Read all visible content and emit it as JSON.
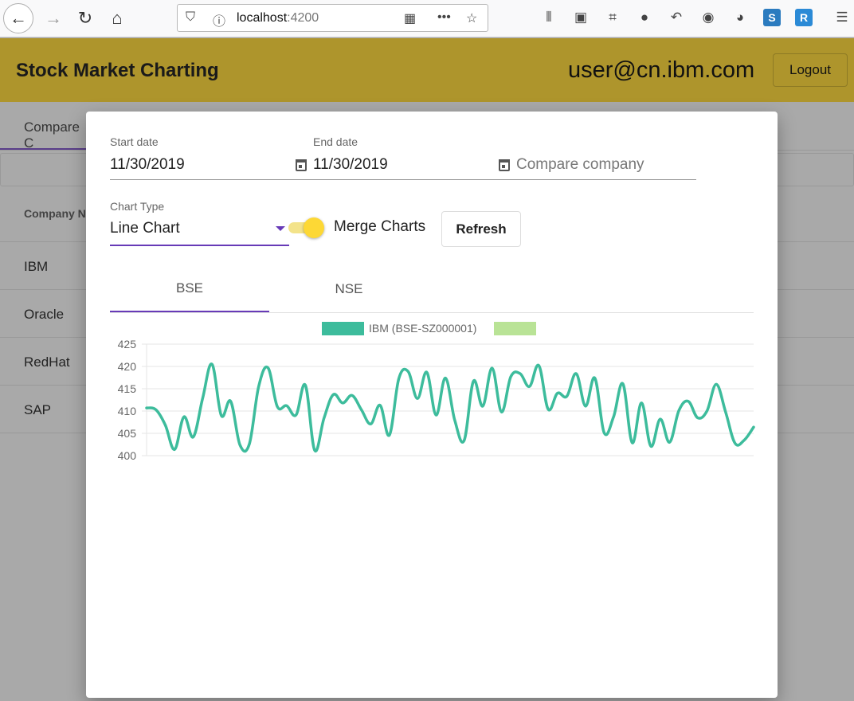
{
  "browser": {
    "url_host": "localhost",
    "url_port": ":4200"
  },
  "header": {
    "title": "Stock Market Charting",
    "user_email": "user@cn.ibm.com",
    "logout_label": "Logout"
  },
  "background_page": {
    "tab_label": "Compare C",
    "column_header": "Company N",
    "rows": [
      "IBM",
      "Oracle",
      "RedHat",
      "SAP"
    ]
  },
  "modal": {
    "start_date": {
      "label": "Start date",
      "value": "11/30/2019"
    },
    "end_date": {
      "label": "End date",
      "value": "11/30/2019"
    },
    "compare_company": {
      "placeholder": "Compare company"
    },
    "chart_type": {
      "label": "Chart Type",
      "value": "Line Chart"
    },
    "merge_toggle_label": "Merge Charts",
    "refresh_label": "Refresh",
    "tabs": [
      {
        "label": "BSE",
        "active": true
      },
      {
        "label": "NSE",
        "active": false
      }
    ]
  },
  "colors": {
    "header_bg": "#ae952c",
    "accent": "#673ab7",
    "toggle": "#fdd835",
    "series_primary": "#3dbc9c",
    "series_secondary": "#b9e396"
  },
  "chart_data": {
    "type": "line",
    "ylim": [
      400,
      425
    ],
    "yticks": [
      400,
      405,
      410,
      415,
      420,
      425
    ],
    "grid": true,
    "legend_position": "top",
    "series": [
      {
        "name": "IBM (BSE-SZ000001)",
        "color": "#3dbc9c",
        "values": [
          410.7,
          410.3,
          406.9,
          401.4,
          408.7,
          404.2,
          412.8,
          420.5,
          409.0,
          412.2,
          402.4,
          402.6,
          415.5,
          419.7,
          411.0,
          411.2,
          409.1,
          415.8,
          401.2,
          408.4,
          413.7,
          411.8,
          413.5,
          410.3,
          407.1,
          411.3,
          404.6,
          417.2,
          418.9,
          412.8,
          418.7,
          409.1,
          417.4,
          407.9,
          403.4,
          416.7,
          411.1,
          419.6,
          409.8,
          417.7,
          418.4,
          415.5,
          420.2,
          410.4,
          414.0,
          413.3,
          418.4,
          411.1,
          417.4,
          405.1,
          408.7,
          416.1,
          402.9,
          411.8,
          402.1,
          408.2,
          403.0,
          410.1,
          412.2,
          408.5,
          410.0,
          416.0,
          409.8,
          402.8,
          403.5,
          406.4
        ]
      },
      {
        "name": "",
        "color": "#b9e396",
        "values": []
      }
    ]
  }
}
